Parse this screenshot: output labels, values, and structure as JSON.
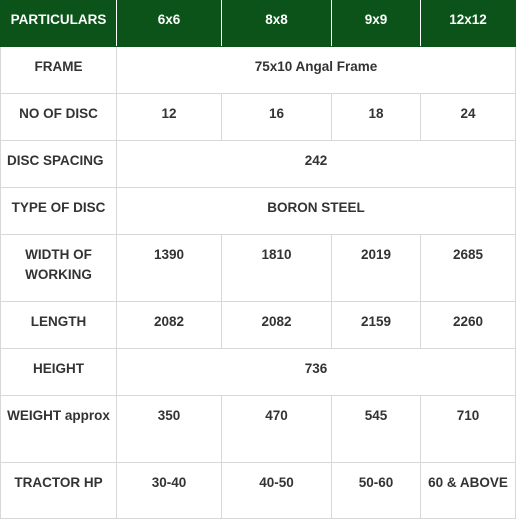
{
  "table": {
    "headers": [
      "PARTICULARS",
      "6x6",
      "8x8",
      "9x9",
      "12x12"
    ],
    "rows": [
      {
        "label": "FRAME",
        "span": "75x10 Angal Frame"
      },
      {
        "label": "NO OF DISC",
        "values": [
          "12",
          "16",
          "18",
          "24"
        ]
      },
      {
        "label": "DISC SPACING",
        "span": "242"
      },
      {
        "label": "TYPE OF DISC",
        "span": "BORON STEEL"
      },
      {
        "label": "WIDTH OF WORKING",
        "values": [
          "1390",
          "1810",
          "2019",
          "2685"
        ]
      },
      {
        "label": "LENGTH",
        "values": [
          "2082",
          "2082",
          "2159",
          "2260"
        ]
      },
      {
        "label": "HEIGHT",
        "span": "736"
      },
      {
        "label": "WEIGHT approx",
        "values": [
          "350",
          "470",
          "545",
          "710"
        ]
      },
      {
        "label": "TRACTOR HP",
        "values": [
          "30-40",
          "40-50",
          "50-60",
          "60 & ABOVE"
        ]
      }
    ]
  },
  "colors": {
    "header_bg": "#0b5318",
    "header_text": "#ffffff",
    "body_text": "#333333",
    "border": "#d8d8d8"
  }
}
